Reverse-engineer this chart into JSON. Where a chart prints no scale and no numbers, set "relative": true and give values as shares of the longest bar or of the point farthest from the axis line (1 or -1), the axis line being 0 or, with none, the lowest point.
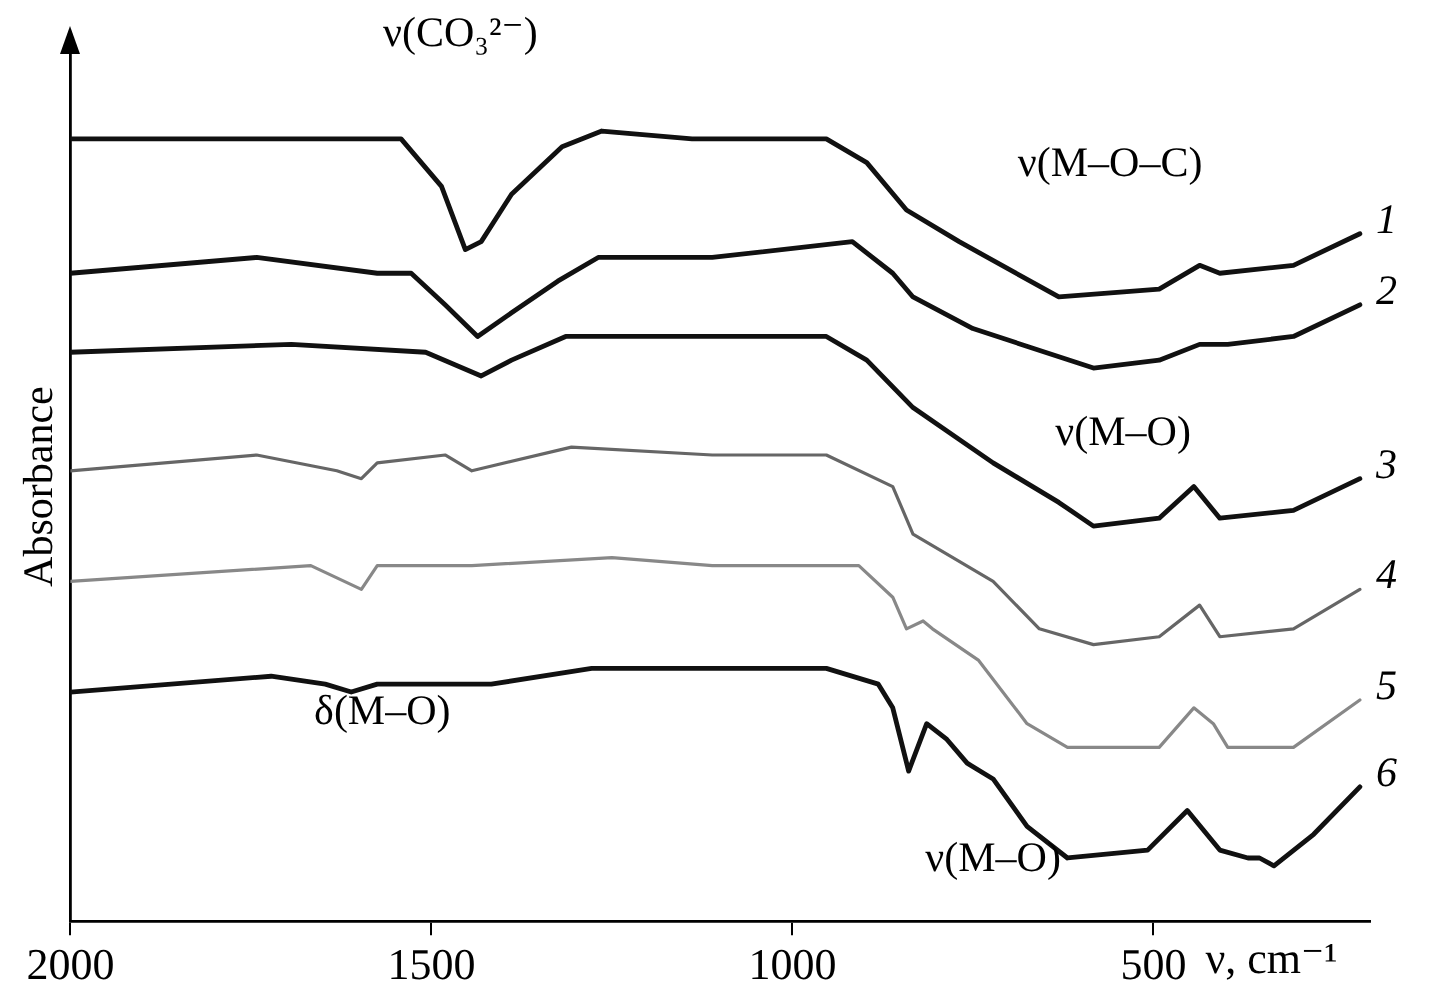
{
  "chart_data": {
    "type": "line",
    "relative": true,
    "xlabel": "ν, cm⁻¹",
    "ylabel": "Absorbance",
    "xlim": [
      2000,
      200
    ],
    "xticks": [
      2000,
      1500,
      1000,
      500
    ],
    "legend": false,
    "grid": false,
    "marker": "none",
    "line_style": "solid",
    "annotations": [
      "ν(CO₃²⁻)",
      "ν(M–O–C)",
      "ν(M–O)",
      "δ(M–O)",
      "ν(M–O)"
    ],
    "series": [
      {
        "name": "1",
        "color": "#111111",
        "x": [
          2000,
          1694,
          1542,
          1486,
          1453,
          1431,
          1389,
          1319,
          1264,
          1139,
          953,
          897,
          842,
          769,
          631,
          492,
          436,
          408,
          306,
          214
        ],
        "values": [
          0.99,
          0.99,
          0.99,
          0.93,
          0.85,
          0.86,
          0.92,
          0.98,
          1.0,
          0.99,
          0.99,
          0.96,
          0.9,
          0.86,
          0.79,
          0.8,
          0.83,
          0.82,
          0.83,
          0.87
        ]
      },
      {
        "name": "2",
        "color": "#111111",
        "x": [
          2000,
          1742,
          1575,
          1528,
          1481,
          1436,
          1389,
          1325,
          1269,
          1111,
          917,
          861,
          833,
          750,
          583,
          492,
          436,
          397,
          306,
          214
        ],
        "values": [
          0.82,
          0.84,
          0.82,
          0.82,
          0.78,
          0.74,
          0.77,
          0.81,
          0.84,
          0.84,
          0.86,
          0.82,
          0.79,
          0.75,
          0.7,
          0.71,
          0.73,
          0.73,
          0.74,
          0.78
        ]
      },
      {
        "name": "3",
        "color": "#111111",
        "x": [
          2000,
          1694,
          1508,
          1431,
          1389,
          1314,
          1111,
          953,
          897,
          833,
          722,
          631,
          583,
          492,
          444,
          408,
          306,
          214
        ],
        "values": [
          0.72,
          0.73,
          0.72,
          0.69,
          0.71,
          0.74,
          0.74,
          0.74,
          0.71,
          0.65,
          0.58,
          0.53,
          0.5,
          0.51,
          0.55,
          0.51,
          0.52,
          0.56
        ]
      },
      {
        "name": "4",
        "color": "#666666",
        "x": [
          2000,
          1742,
          1631,
          1597,
          1575,
          1481,
          1444,
          1306,
          1111,
          953,
          861,
          833,
          722,
          658,
          583,
          492,
          436,
          408,
          306,
          214
        ],
        "values": [
          0.57,
          0.59,
          0.57,
          0.56,
          0.58,
          0.59,
          0.57,
          0.6,
          0.59,
          0.59,
          0.55,
          0.49,
          0.43,
          0.37,
          0.35,
          0.36,
          0.4,
          0.36,
          0.37,
          0.42
        ]
      },
      {
        "name": "5",
        "color": "#888888",
        "x": [
          2000,
          1667,
          1597,
          1575,
          1444,
          1250,
          1111,
          908,
          861,
          842,
          819,
          806,
          742,
          675,
          619,
          492,
          444,
          417,
          397,
          306,
          214
        ],
        "values": [
          0.43,
          0.45,
          0.42,
          0.45,
          0.45,
          0.46,
          0.45,
          0.45,
          0.41,
          0.37,
          0.38,
          0.37,
          0.33,
          0.25,
          0.22,
          0.22,
          0.27,
          0.25,
          0.22,
          0.22,
          0.28
        ]
      },
      {
        "name": "6",
        "color": "#111111",
        "x": [
          2000,
          1722,
          1647,
          1611,
          1575,
          1417,
          1278,
          1111,
          953,
          881,
          861,
          839,
          814,
          786,
          758,
          722,
          675,
          619,
          508,
          453,
          408,
          369,
          353,
          333,
          278,
          214
        ],
        "values": [
          0.29,
          0.31,
          0.3,
          0.29,
          0.3,
          0.3,
          0.32,
          0.32,
          0.32,
          0.3,
          0.27,
          0.19,
          0.25,
          0.23,
          0.2,
          0.18,
          0.12,
          0.08,
          0.09,
          0.14,
          0.09,
          0.08,
          0.08,
          0.07,
          0.11,
          0.17
        ]
      }
    ]
  }
}
